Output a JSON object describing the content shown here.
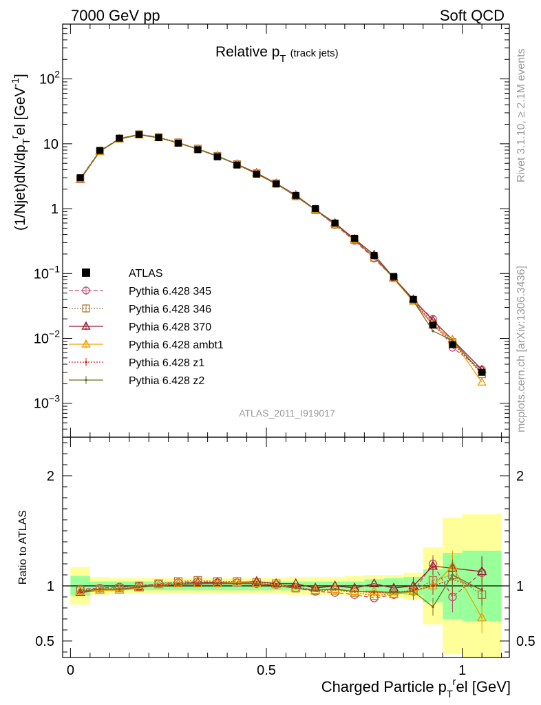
{
  "header": {
    "left": "7000 GeV pp",
    "right": "Soft QCD"
  },
  "side_text": {
    "rivet": "Rivet 3.1.10, ≥ 2.1M events",
    "mcplots": "mcplots.cern.ch [arXiv:1306.3436]"
  },
  "analysis_label": "ATLAS_2011_I919017",
  "chart_data": [
    {
      "type": "line",
      "panel": "main",
      "title": "Relative p_T (track jets)",
      "title_parts": {
        "main": "Relative p",
        "sub": "T",
        "suffix": "(track jets)"
      },
      "ylabel": "(1/Njet)dN/dp_T^rel [GeV^-1]",
      "ylabel_parts": {
        "a": "(1/Njet)dN/dp",
        "sub": "T",
        "sup": "r",
        "b": "el [GeV",
        "unit_sup": "-1",
        "c": "]"
      },
      "yscale": "log",
      "ylim": [
        0.0003,
        700
      ],
      "xlim": [
        -0.02,
        1.12
      ],
      "y_ticks": [
        {
          "value": 0.001,
          "label": "10",
          "exp": "−3"
        },
        {
          "value": 0.01,
          "label": "10",
          "exp": "−2"
        },
        {
          "value": 0.1,
          "label": "10",
          "exp": "−1"
        },
        {
          "value": 1,
          "label": "1",
          "exp": ""
        },
        {
          "value": 10,
          "label": "10",
          "exp": ""
        },
        {
          "value": 100,
          "label": "10",
          "exp": "2"
        }
      ],
      "legend_position": "middle-left",
      "x": [
        0.025,
        0.075,
        0.125,
        0.175,
        0.225,
        0.275,
        0.325,
        0.375,
        0.425,
        0.475,
        0.525,
        0.575,
        0.625,
        0.675,
        0.725,
        0.775,
        0.825,
        0.875,
        0.925,
        0.975,
        1.05
      ],
      "series": [
        {
          "name": "ATLAS",
          "color": "#000000",
          "marker": "square",
          "dash": "",
          "values": [
            3.0,
            7.9,
            12.2,
            13.9,
            12.4,
            10.2,
            8.1,
            6.3,
            4.7,
            3.4,
            2.4,
            1.6,
            1.0,
            0.6,
            0.35,
            0.19,
            0.09,
            0.04,
            0.016,
            0.008,
            0.003
          ]
        },
        {
          "name": "Pythia 6.428 345",
          "color": "#c24a6b",
          "marker": "circle",
          "dash": "6,3",
          "values": [
            2.93,
            7.8,
            12.1,
            14.0,
            12.6,
            10.4,
            8.3,
            6.5,
            4.8,
            3.5,
            2.45,
            1.56,
            0.95,
            0.56,
            0.32,
            0.17,
            0.085,
            0.038,
            0.02,
            0.0072,
            0.0033
          ]
        },
        {
          "name": "Pythia 6.428 346",
          "color": "#b07a3c",
          "marker": "square-open",
          "dash": "2,2",
          "values": [
            2.9,
            7.7,
            12.0,
            14.0,
            12.7,
            10.5,
            8.4,
            6.5,
            4.85,
            3.5,
            2.45,
            1.55,
            0.95,
            0.57,
            0.33,
            0.175,
            0.086,
            0.039,
            0.017,
            0.0088,
            0.0028
          ]
        },
        {
          "name": "Pythia 6.428 370",
          "color": "#9a1b2e",
          "marker": "triangle",
          "dash": "",
          "values": [
            2.8,
            7.6,
            11.8,
            13.7,
            12.4,
            10.3,
            8.3,
            6.5,
            4.85,
            3.55,
            2.45,
            1.62,
            0.97,
            0.6,
            0.34,
            0.195,
            0.086,
            0.04,
            0.019,
            0.0095,
            0.0033
          ]
        },
        {
          "name": "Pythia 6.428 ambt1",
          "color": "#f0a000",
          "marker": "triangle",
          "dash": "",
          "values": [
            2.85,
            7.6,
            11.8,
            13.6,
            12.5,
            10.4,
            8.3,
            6.45,
            4.8,
            3.45,
            2.4,
            1.58,
            0.96,
            0.58,
            0.33,
            0.18,
            0.083,
            0.037,
            0.016,
            0.0095,
            0.0021
          ]
        },
        {
          "name": "Pythia 6.428 z1",
          "color": "#dd2222",
          "marker": "dot",
          "dash": "2,2",
          "values": [
            2.9,
            7.7,
            11.9,
            13.8,
            12.5,
            10.3,
            8.3,
            6.45,
            4.8,
            3.45,
            2.45,
            1.58,
            0.97,
            0.58,
            0.33,
            0.18,
            0.085,
            0.038,
            0.016,
            0.0085,
            0.0029
          ]
        },
        {
          "name": "Pythia 6.428 z2",
          "color": "#6e6e1e",
          "marker": "dot",
          "dash": "",
          "values": [
            2.85,
            7.7,
            11.9,
            13.8,
            12.4,
            10.3,
            8.25,
            6.4,
            4.8,
            3.45,
            2.4,
            1.56,
            0.96,
            0.58,
            0.33,
            0.18,
            0.085,
            0.038,
            0.013,
            0.0093,
            0.0029
          ]
        }
      ]
    },
    {
      "type": "line",
      "panel": "ratio",
      "ylabel": "Ratio to ATLAS",
      "xlabel": "Charged Particle p_T^rel [GeV]",
      "xlabel_parts": {
        "a": "Charged Particle p",
        "sub": "T",
        "sup": "r",
        "b": "el [GeV]"
      },
      "ylim": [
        0.35,
        2.35
      ],
      "xlim": [
        -0.02,
        1.12
      ],
      "x_ticks": [
        {
          "value": 0,
          "label": "0"
        },
        {
          "value": 0.5,
          "label": "0.5"
        },
        {
          "value": 1,
          "label": "1"
        }
      ],
      "y_ticks": [
        {
          "value": 0.5,
          "label": "0.5"
        },
        {
          "value": 1,
          "label": "1"
        },
        {
          "value": 2,
          "label": "2"
        }
      ],
      "uncertainty_bands": {
        "edges": [
          0.0,
          0.05,
          0.1,
          0.15,
          0.2,
          0.25,
          0.3,
          0.35,
          0.4,
          0.45,
          0.5,
          0.55,
          0.6,
          0.65,
          0.7,
          0.75,
          0.8,
          0.85,
          0.9,
          0.95,
          1.0,
          1.1
        ],
        "yellow_half": [
          0.17,
          0.08,
          0.07,
          0.07,
          0.07,
          0.07,
          0.07,
          0.07,
          0.07,
          0.07,
          0.07,
          0.08,
          0.08,
          0.08,
          0.09,
          0.1,
          0.1,
          0.12,
          0.35,
          0.62,
          0.65
        ],
        "green_half": [
          0.09,
          0.04,
          0.04,
          0.04,
          0.04,
          0.04,
          0.04,
          0.04,
          0.04,
          0.04,
          0.04,
          0.04,
          0.04,
          0.04,
          0.04,
          0.06,
          0.07,
          0.08,
          0.15,
          0.3,
          0.32
        ]
      },
      "x": [
        0.025,
        0.075,
        0.125,
        0.175,
        0.225,
        0.275,
        0.325,
        0.375,
        0.425,
        0.475,
        0.525,
        0.575,
        0.625,
        0.675,
        0.725,
        0.775,
        0.825,
        0.875,
        0.925,
        0.975,
        1.05
      ],
      "series": [
        {
          "name": "Pythia 6.428 345",
          "color": "#c24a6b",
          "marker": "circle",
          "dash": "6,3",
          "values": [
            0.97,
            0.98,
            0.99,
            1.0,
            1.02,
            1.03,
            1.04,
            1.03,
            1.03,
            1.02,
            1.01,
            0.98,
            0.95,
            0.94,
            0.92,
            0.89,
            0.92,
            0.95,
            1.2,
            0.9,
            1.12
          ]
        },
        {
          "name": "Pythia 6.428 346",
          "color": "#b07a3c",
          "marker": "square-open",
          "dash": "2,2",
          "values": [
            0.96,
            0.97,
            0.98,
            1.0,
            1.02,
            1.04,
            1.05,
            1.04,
            1.04,
            1.03,
            1.02,
            0.98,
            0.96,
            0.96,
            0.94,
            0.91,
            0.93,
            0.96,
            1.05,
            1.1,
            0.92
          ]
        },
        {
          "name": "Pythia 6.428 370",
          "color": "#9a1b2e",
          "marker": "triangle",
          "dash": "",
          "values": [
            0.94,
            0.96,
            0.96,
            0.99,
            1.01,
            1.02,
            1.03,
            1.03,
            1.03,
            1.04,
            1.02,
            1.02,
            0.98,
            1.0,
            0.98,
            1.02,
            0.98,
            1.0,
            1.18,
            1.16,
            1.13
          ]
        },
        {
          "name": "Pythia 6.428 ambt1",
          "color": "#f0a000",
          "marker": "triangle",
          "dash": "",
          "values": [
            0.95,
            0.96,
            0.96,
            0.98,
            1.01,
            1.02,
            1.02,
            1.02,
            1.03,
            1.02,
            1.01,
            0.98,
            0.96,
            0.97,
            0.95,
            0.95,
            0.92,
            0.95,
            1.0,
            1.18,
            0.71
          ]
        },
        {
          "name": "Pythia 6.428 z1",
          "color": "#dd2222",
          "marker": "dot",
          "dash": "2,2",
          "values": [
            0.96,
            0.97,
            0.97,
            0.99,
            1.01,
            1.02,
            1.02,
            1.02,
            1.02,
            1.02,
            1.01,
            0.99,
            0.96,
            0.97,
            0.95,
            0.94,
            0.94,
            0.96,
            1.0,
            1.06,
            0.97
          ]
        },
        {
          "name": "Pythia 6.428 z2",
          "color": "#6e6e1e",
          "marker": "dot",
          "dash": "",
          "values": [
            0.95,
            0.97,
            0.97,
            0.99,
            1.0,
            1.01,
            1.02,
            1.02,
            1.02,
            1.02,
            1.0,
            0.98,
            0.96,
            0.97,
            0.95,
            0.95,
            0.94,
            0.95,
            0.81,
            1.1,
            0.96
          ]
        }
      ]
    }
  ]
}
